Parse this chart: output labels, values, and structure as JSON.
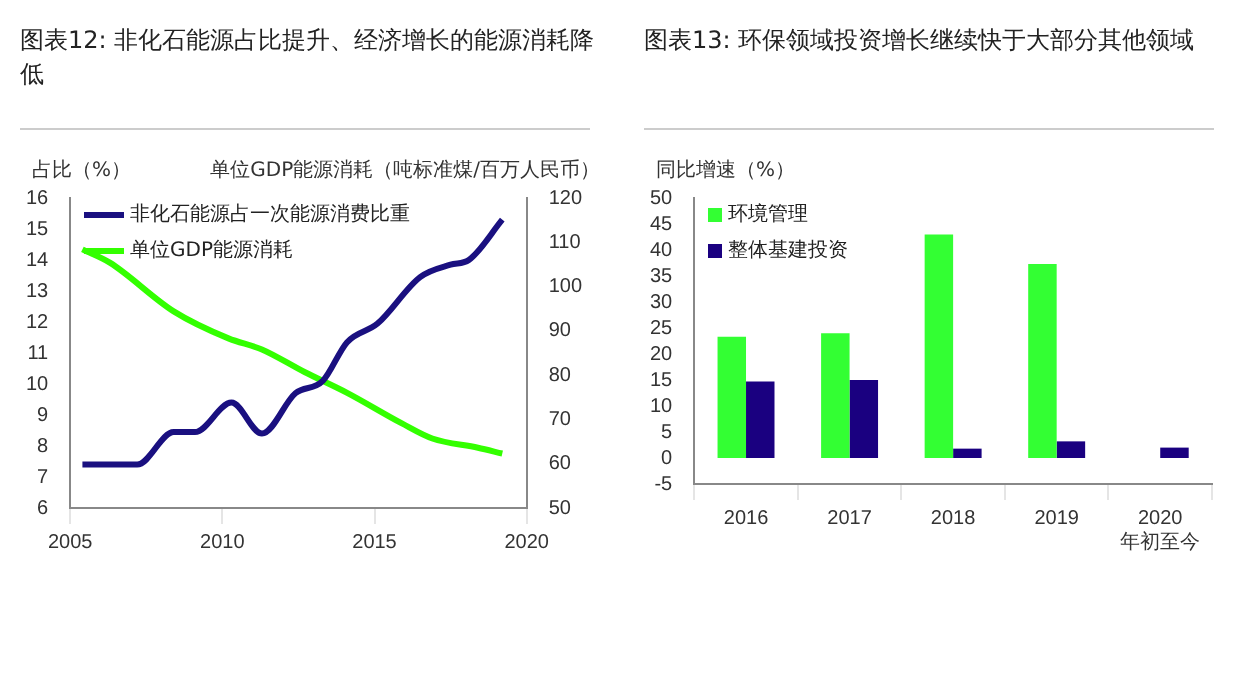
{
  "chart_data": [
    {
      "type": "line",
      "title": "图表12: 非化石能源占比提升、经济增长的能源消耗降低",
      "ylabel": "占比（%）",
      "y2label": "单位GDP能源消耗（吨标准煤/百万人民币）",
      "xlim": [
        2005,
        2020
      ],
      "xticks": [
        2005,
        2010,
        2015,
        2020
      ],
      "ylim": [
        6,
        16
      ],
      "yticks": [
        6,
        7,
        8,
        9,
        10,
        11,
        12,
        13,
        14,
        15,
        16
      ],
      "y2lim": [
        50,
        120
      ],
      "y2ticks": [
        50,
        60,
        70,
        80,
        90,
        100,
        110,
        120
      ],
      "grid": false,
      "legend": "top left",
      "marker": "none",
      "line_style": "solid",
      "series": [
        {
          "name": "非化石能源占一次能源消费比重",
          "color": "#1a1080",
          "x": [
            2005.4,
            2007.2,
            2008.4,
            2009.1,
            2010.3,
            2011.3,
            2012.4,
            2013.3,
            2014.1,
            2015.1,
            2016.5,
            2017.5,
            2018.1,
            2019.2
          ],
          "values": [
            7.4,
            7.4,
            8.45,
            8.45,
            9.4,
            8.4,
            9.7,
            10.1,
            11.35,
            11.95,
            13.45,
            13.85,
            14.0,
            15.3
          ]
        },
        {
          "name": "单位GDP能源消耗",
          "color": "#33ff00",
          "axis": "y2",
          "x": [
            2005.4,
            2006.3,
            2008.4,
            2010.2,
            2011.3,
            2012.7,
            2014.1,
            2015.9,
            2016.9,
            2018.4,
            2019.2
          ],
          "values": [
            108.4,
            105.4,
            94.4,
            88.3,
            85.8,
            80.7,
            76,
            69.1,
            65.7,
            63.6,
            62.3
          ]
        }
      ]
    },
    {
      "type": "bar",
      "title": "图表13: 环保领域投资增长继续快于大部分其他领域",
      "ylabel": "同比增速（%）",
      "categories": [
        "2016",
        "2017",
        "2018",
        "2019",
        "2020\n年初至今"
      ],
      "ylim": [
        -5,
        50
      ],
      "yticks": [
        -5,
        0,
        5,
        10,
        15,
        20,
        25,
        30,
        35,
        40,
        45,
        50
      ],
      "grid": false,
      "legend": "top left",
      "series": [
        {
          "name": "环境管理",
          "color": "#33ff33",
          "values": [
            23.3,
            24,
            43,
            37.3,
            null
          ]
        },
        {
          "name": "整体基建投资",
          "color": "#1a0080",
          "values": [
            14.7,
            15,
            1.8,
            3.2,
            2
          ]
        }
      ]
    }
  ]
}
